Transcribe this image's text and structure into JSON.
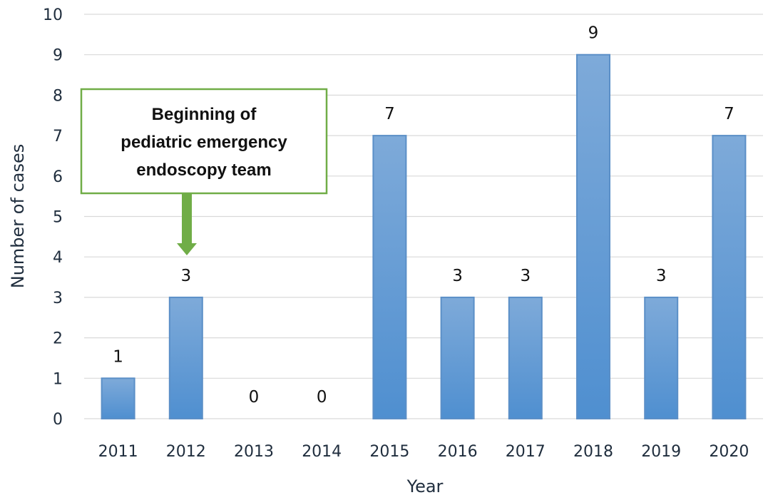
{
  "chart_data": {
    "type": "bar",
    "categories": [
      "2011",
      "2012",
      "2013",
      "2014",
      "2015",
      "2016",
      "2017",
      "2018",
      "2019",
      "2020"
    ],
    "values": [
      1,
      3,
      0,
      0,
      7,
      3,
      3,
      9,
      3,
      7
    ],
    "xlabel": "Year",
    "ylabel": "Number of cases",
    "ylim": [
      0,
      10
    ],
    "yticks": [
      0,
      1,
      2,
      3,
      4,
      5,
      6,
      7,
      8,
      9,
      10
    ],
    "grid": true,
    "data_labels": true,
    "bar_color": "#5b9bd5",
    "annotation": {
      "lines": [
        "Beginning of",
        "pediatric emergency",
        "endoscopy team"
      ],
      "target_category": "2012",
      "border_color": "#70ad47",
      "arrow_color": "#70ad47"
    }
  }
}
